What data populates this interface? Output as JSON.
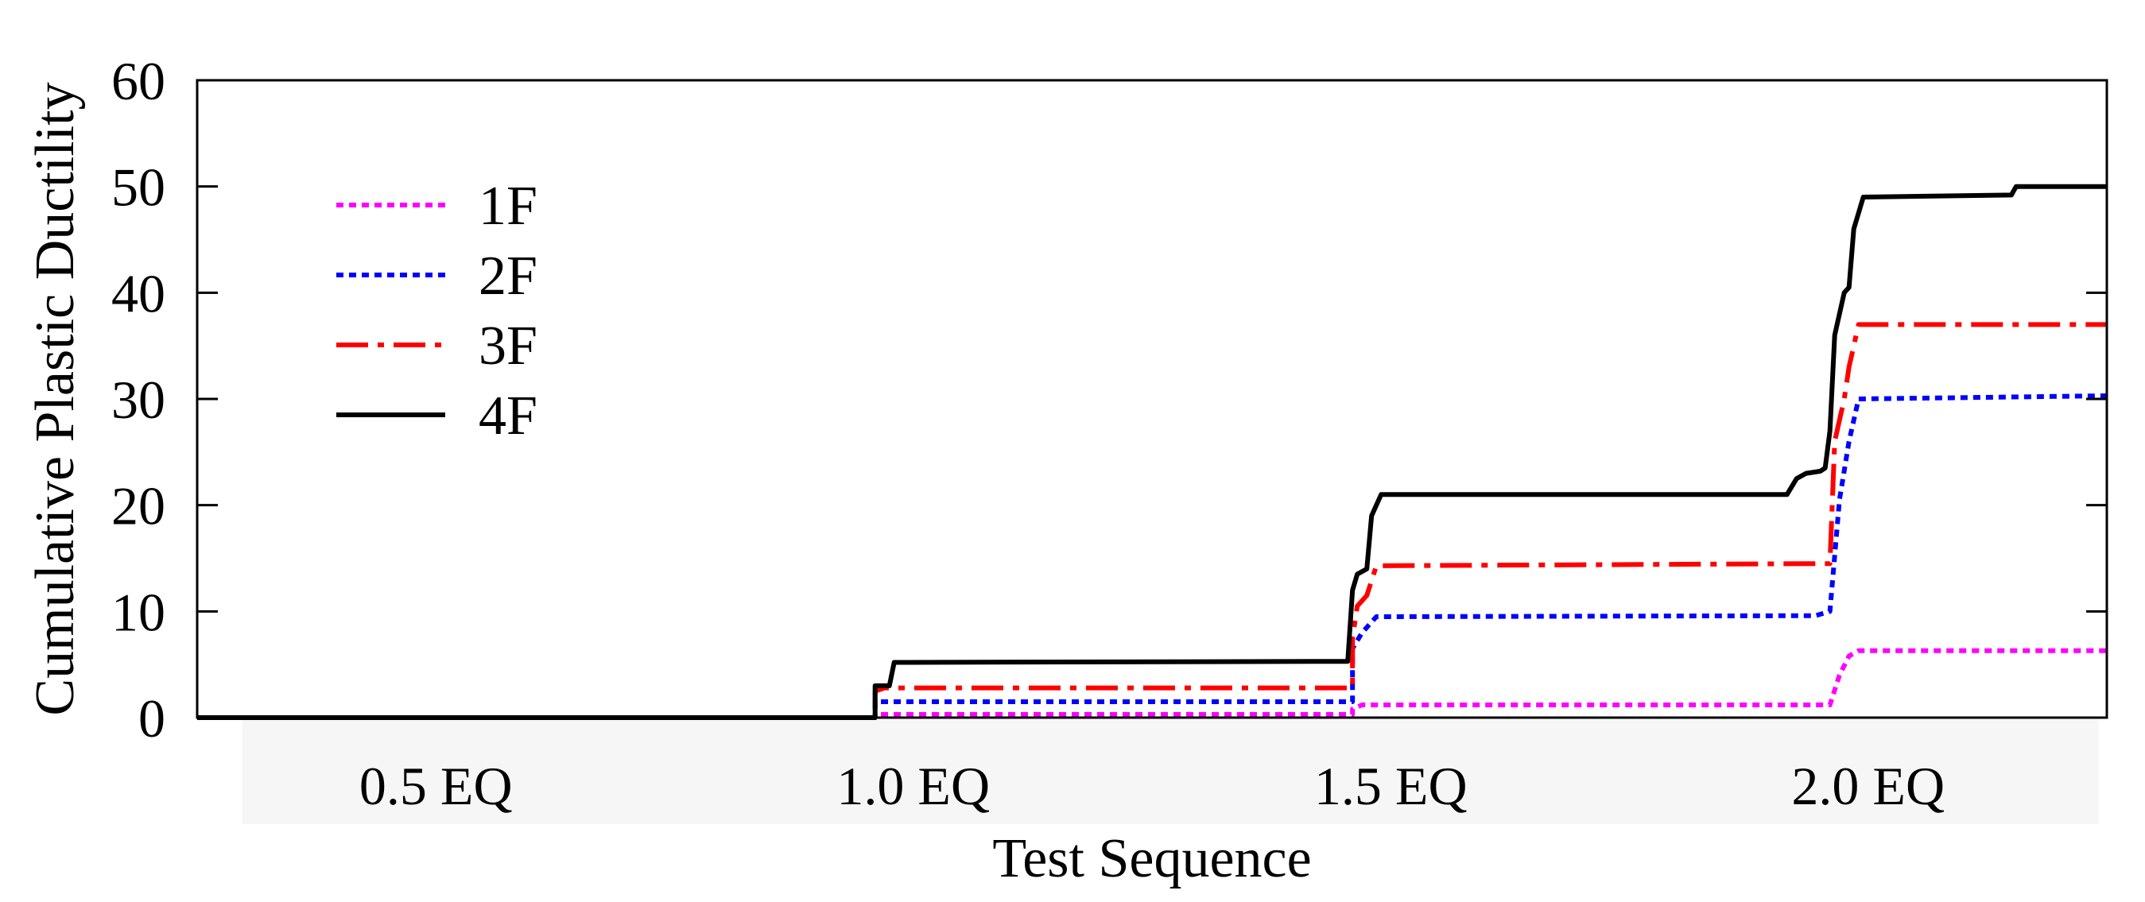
{
  "chart_data": {
    "type": "line",
    "xlabel": "Test Sequence",
    "ylabel": "Cumulative Plastic Ductility",
    "ylim": [
      0,
      60
    ],
    "xlim": [
      0,
      4
    ],
    "yticks": [
      0,
      10,
      20,
      30,
      40,
      50,
      60
    ],
    "xtick_labels": [
      {
        "x": 0.5,
        "label": "0.5 EQ"
      },
      {
        "x": 1.5,
        "label": "1.0 EQ"
      },
      {
        "x": 2.5,
        "label": "1.5 EQ"
      },
      {
        "x": 3.5,
        "label": "2.0 EQ"
      }
    ],
    "grid": false,
    "legend_position": "top-left",
    "series": [
      {
        "name": "1F",
        "color": "#ff00ff",
        "dash": "dotted",
        "points": [
          [
            0,
            0
          ],
          [
            1.42,
            0
          ],
          [
            1.42,
            0.3
          ],
          [
            2.42,
            0.3
          ],
          [
            2.42,
            0.8
          ],
          [
            2.44,
            1.2
          ],
          [
            3.42,
            1.2
          ],
          [
            3.44,
            4.0
          ],
          [
            3.46,
            5.8
          ],
          [
            3.48,
            6.3
          ],
          [
            4.0,
            6.3
          ]
        ]
      },
      {
        "name": "2F",
        "color": "#0000ff",
        "dash": "dotted",
        "points": [
          [
            0,
            0
          ],
          [
            1.42,
            0
          ],
          [
            1.42,
            1.5
          ],
          [
            2.42,
            1.5
          ],
          [
            2.42,
            6.5
          ],
          [
            2.44,
            8.0
          ],
          [
            2.47,
            9.5
          ],
          [
            3.39,
            9.6
          ],
          [
            3.42,
            10.0
          ],
          [
            3.42,
            10.0
          ],
          [
            3.44,
            20.5
          ],
          [
            3.46,
            26.0
          ],
          [
            3.48,
            30.0
          ],
          [
            4.0,
            30.3
          ]
        ]
      },
      {
        "name": "3F",
        "color": "#ff0000",
        "dash": "dashdot",
        "points": [
          [
            0,
            0
          ],
          [
            1.42,
            0
          ],
          [
            1.42,
            2.5
          ],
          [
            1.44,
            2.8
          ],
          [
            2.42,
            2.8
          ],
          [
            2.42,
            7.5
          ],
          [
            2.43,
            10.5
          ],
          [
            2.45,
            11.5
          ],
          [
            2.47,
            14.3
          ],
          [
            3.4,
            14.5
          ],
          [
            3.42,
            14.5
          ],
          [
            3.43,
            26.0
          ],
          [
            3.45,
            30.0
          ],
          [
            3.46,
            33.0
          ],
          [
            3.48,
            37.0
          ],
          [
            4.0,
            37.0
          ]
        ]
      },
      {
        "name": "4F",
        "color": "#000000",
        "dash": "solid",
        "points": [
          [
            0,
            0
          ],
          [
            1.42,
            0
          ],
          [
            1.42,
            3.0
          ],
          [
            1.45,
            3.0
          ],
          [
            1.46,
            5.2
          ],
          [
            2.41,
            5.3
          ],
          [
            2.42,
            12.0
          ],
          [
            2.43,
            13.5
          ],
          [
            2.45,
            14.0
          ],
          [
            2.46,
            19.0
          ],
          [
            2.48,
            21.0
          ],
          [
            3.33,
            21.0
          ],
          [
            3.35,
            22.5
          ],
          [
            3.37,
            23.0
          ],
          [
            3.4,
            23.2
          ],
          [
            3.41,
            23.5
          ],
          [
            3.42,
            27.0
          ],
          [
            3.43,
            36.0
          ],
          [
            3.45,
            40.0
          ],
          [
            3.46,
            40.5
          ],
          [
            3.47,
            46.0
          ],
          [
            3.49,
            49.0
          ],
          [
            3.8,
            49.2
          ],
          [
            3.81,
            50.0
          ],
          [
            4.0,
            50.0
          ]
        ]
      }
    ]
  }
}
